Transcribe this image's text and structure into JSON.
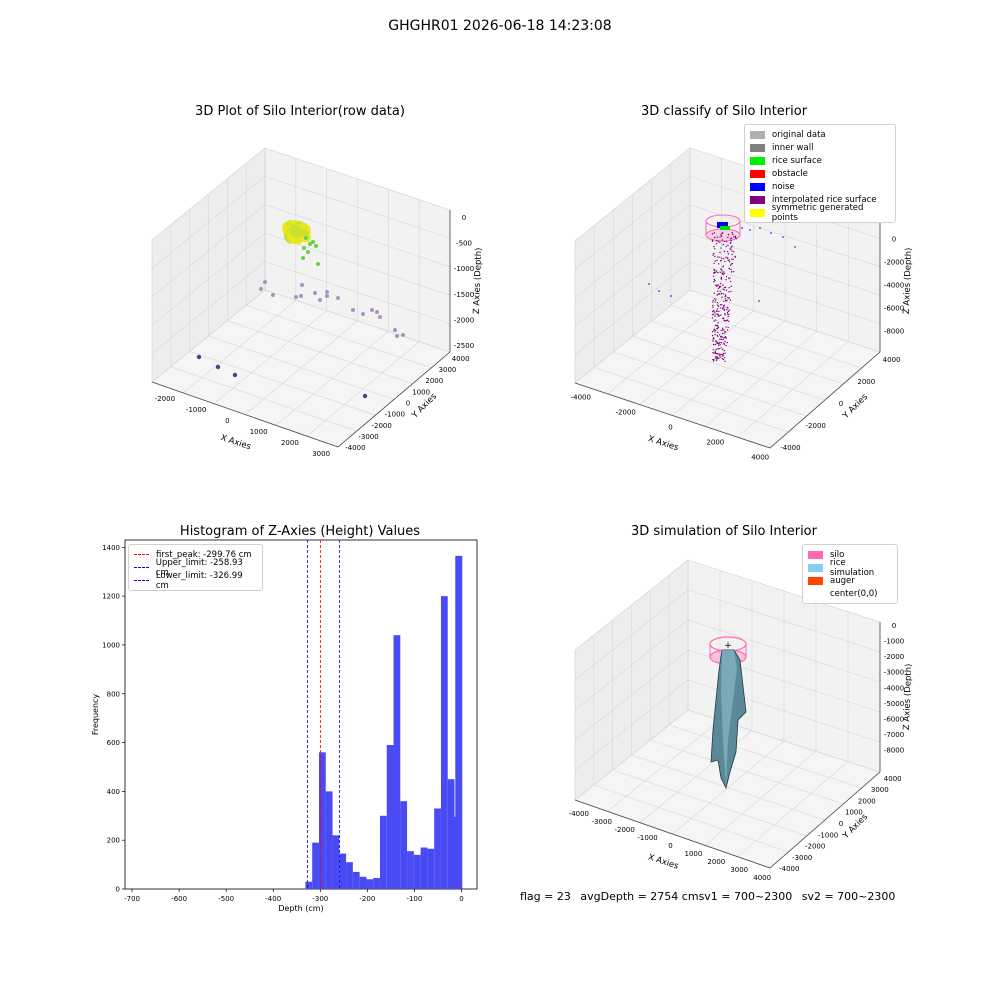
{
  "suptitle": "GHGHR01 2026-06-18 14:23:08",
  "panels": {
    "raw": {
      "title": "3D Plot of Silo Interior(row data)",
      "xlabel": "X Axies",
      "ylabel": "Y Axies",
      "zlabel": "Z Axies (Depth)",
      "x_ticks": [
        "-2000",
        "-1000",
        "0",
        "1000",
        "2000",
        "3000"
      ],
      "y_ticks": [
        "-4000",
        "-3000",
        "-2000",
        "-1000",
        "0",
        "1000",
        "2000",
        "3000",
        "4000"
      ],
      "z_ticks": [
        "0",
        "-500",
        "-1000",
        "-1500",
        "-2000",
        "-2500"
      ]
    },
    "classify": {
      "title": "3D classify of Silo Interior",
      "xlabel": "X Axies",
      "ylabel": "Y Axies",
      "zlabel": "Z Axies (Depth)",
      "x_ticks": [
        "-4000",
        "-2000",
        "0",
        "2000",
        "4000"
      ],
      "y_ticks": [
        "-4000",
        "-2000",
        "0",
        "2000",
        "4000"
      ],
      "z_ticks": [
        "0",
        "-2000",
        "-4000",
        "-6000",
        "-8000"
      ],
      "legend": [
        {
          "label": "original data",
          "color": "#b0b0b0"
        },
        {
          "label": "inner wall",
          "color": "#808080"
        },
        {
          "label": "rice surface",
          "color": "#00ee00"
        },
        {
          "label": "obstacle",
          "color": "#ff0000"
        },
        {
          "label": "noise",
          "color": "#0000ff"
        },
        {
          "label": "interpolated rice surface",
          "color": "#800080"
        },
        {
          "label": "symmetric generated points",
          "color": "#ffff00"
        }
      ]
    },
    "simulation": {
      "title": "3D simulation of Silo Interior",
      "xlabel": "X Axies",
      "ylabel": "Y Axies",
      "zlabel": "Z Axies (Depth)",
      "x_ticks": [
        "-4000",
        "-3000",
        "-2000",
        "-1000",
        "0",
        "1000",
        "2000",
        "3000",
        "4000"
      ],
      "y_ticks": [
        "-4000",
        "-3000",
        "-2000",
        "-1000",
        "0",
        "1000",
        "2000",
        "3000",
        "4000"
      ],
      "z_ticks": [
        "0",
        "-1000",
        "-2000",
        "-3000",
        "-4000",
        "-5000",
        "-6000",
        "-7000",
        "-8000"
      ],
      "legend": [
        {
          "label": "silo",
          "color": "#ff69b4"
        },
        {
          "label": "rice simulation",
          "color": "#87ceeb"
        },
        {
          "label": "auger",
          "color": "#ff4500"
        },
        {
          "label": "center(0,0)",
          "color": ""
        }
      ],
      "status": {
        "flag": "flag = 23",
        "avg": "avgDepth = 2754 cm",
        "sv1": "sv1 = 700~2300",
        "sv2": "sv2 = 700~2300"
      }
    }
  },
  "chart_data": {
    "type": "bar",
    "title": "Histogram of Z-Axies (Height) Values",
    "xlabel": "Depth (cm)",
    "ylabel": "Frequency",
    "xlim": [
      -715,
      33
    ],
    "ylim": [
      0,
      1430
    ],
    "x_ticks": [
      -700,
      -600,
      -500,
      -400,
      -300,
      -200,
      -100,
      0
    ],
    "y_ticks": [
      0,
      200,
      400,
      600,
      800,
      1000,
      1200,
      1400
    ],
    "bar_color": "#4a4af5",
    "bin_width": 14.4,
    "bin_starts": [
      -331.6,
      -317.2,
      -302.8,
      -288.4,
      -274.0,
      -259.6,
      -245.2,
      -230.8,
      -216.4,
      -202.0,
      -187.6,
      -173.2,
      -158.8,
      -144.4,
      -130.0,
      -115.6,
      -101.2,
      -86.8,
      -72.4,
      -58.0,
      -43.6,
      -29.2,
      -14.8
    ],
    "values": [
      30,
      190,
      560,
      400,
      220,
      145,
      110,
      70,
      50,
      40,
      45,
      300,
      590,
      1040,
      360,
      155,
      140,
      170,
      165,
      330,
      1200,
      450,
      295
    ],
    "last_bin_value": 1365,
    "vlines": [
      {
        "label": "first_peak: -299.76 cm",
        "x": -299.76,
        "color": "#ff0000"
      },
      {
        "label": "Upper_limit: -258.93 cm",
        "x": -258.93,
        "color": "#0000ff"
      },
      {
        "label": "Lower_limit: -326.99 cm",
        "x": -326.99,
        "color": "#0000ff"
      }
    ],
    "legend_position": "upper-left"
  }
}
